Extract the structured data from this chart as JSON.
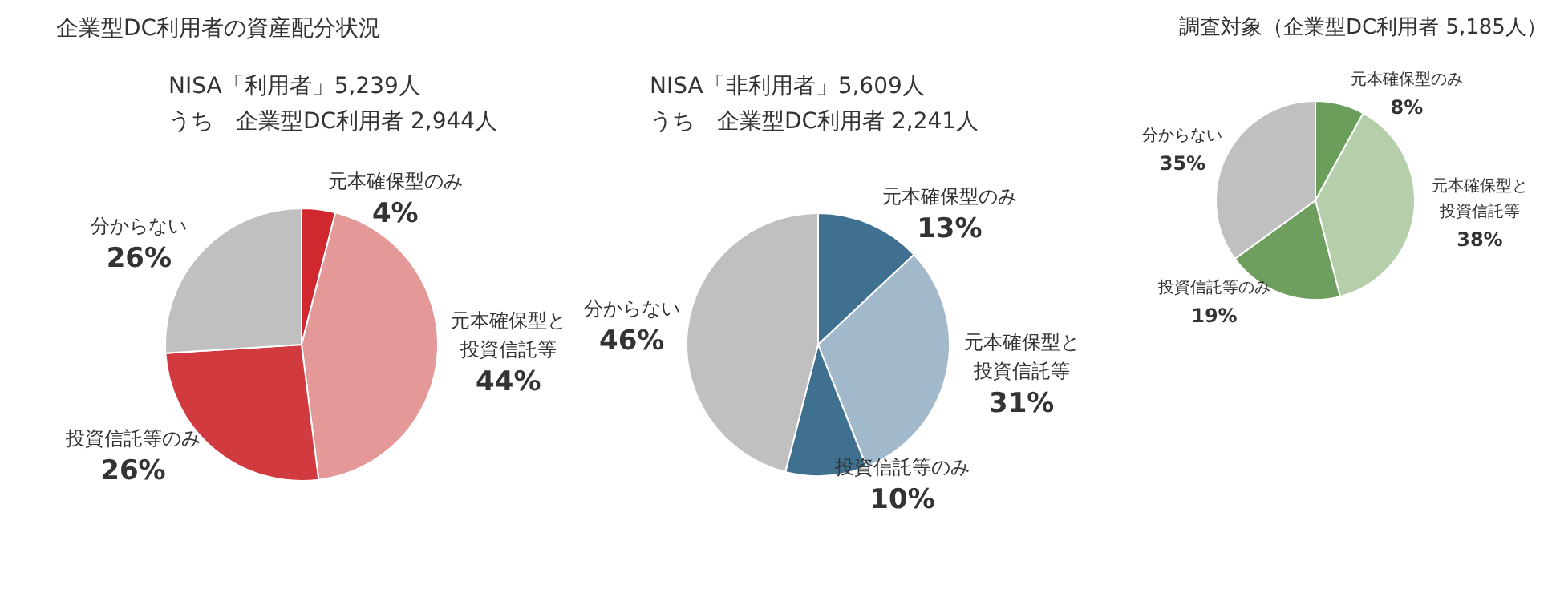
{
  "chart_data": [
    {
      "type": "pie",
      "title": "企業型DC利用者の資産配分状況",
      "subtitle": "NISA「利用者」5,239人",
      "annotations": [
        "うち　企業型DC利用者 2,944人"
      ],
      "categories": [
        "元本確保型のみ",
        "元本確保型と投資信託等",
        "投資信託等のみ",
        "分からない"
      ],
      "values": [
        4,
        44,
        26,
        26
      ],
      "value_labels": [
        "4%",
        "44%",
        "26%",
        "26%"
      ],
      "colors": [
        "#d0282e",
        "#e59898",
        "#d13a3f",
        "#c0c0c0"
      ],
      "legend": false
    },
    {
      "type": "pie",
      "title": "NISA「非利用者」5,609人",
      "annotations": [
        "うち　企業型DC利用者 2,241人"
      ],
      "categories": [
        "元本確保型のみ",
        "元本確保型と投資信託等",
        "投資信託等のみ",
        "分からない"
      ],
      "values": [
        13,
        31,
        10,
        46
      ],
      "value_labels": [
        "13%",
        "31%",
        "10%",
        "46%"
      ],
      "colors": [
        "#3f7090",
        "#a2b9cc",
        "#3f7090",
        "#c0c0c0"
      ],
      "legend": false
    },
    {
      "type": "pie",
      "title": "調査対象（企業型DC利用者 5,185人）",
      "categories": [
        "元本確保型のみ",
        "元本確保型と投資信託等",
        "投資信託等のみ",
        "分からない"
      ],
      "values": [
        8,
        38,
        19,
        35
      ],
      "value_labels": [
        "8%",
        "38%",
        "19%",
        "35%"
      ],
      "colors": [
        "#6a9e5a",
        "#b5cfaa",
        "#6f9f5e",
        "#c0c0c0"
      ],
      "legend": false
    }
  ]
}
